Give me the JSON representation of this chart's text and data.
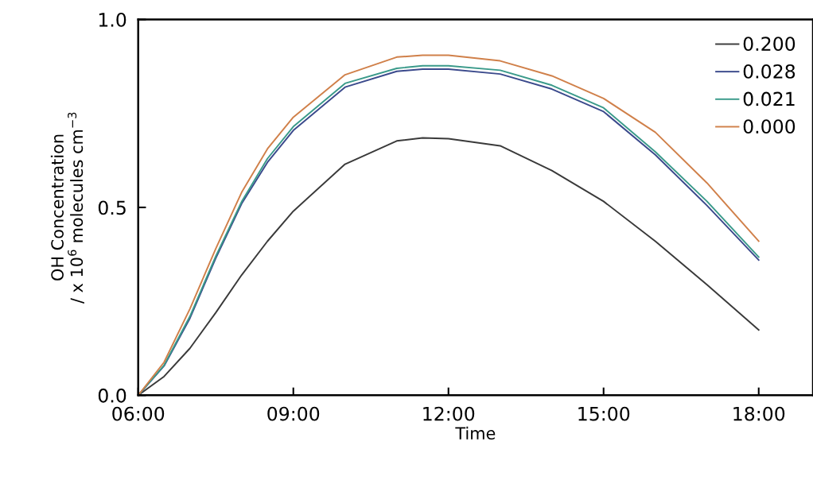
{
  "chart_data": {
    "type": "line",
    "xlabel": "Time",
    "ylabel": "OH Concentration\n/ x 10$^{6}$ molecules cm$^{−3}$",
    "x": [
      6,
      6.5,
      7,
      7.5,
      8,
      8.5,
      9,
      10,
      11,
      11.5,
      12,
      13,
      14,
      15,
      16,
      17,
      18
    ],
    "series": [
      {
        "name": "0.200",
        "color": "#3a3a3a",
        "values": [
          0,
          0.05,
          0.125,
          0.22,
          0.32,
          0.41,
          0.49,
          0.615,
          0.677,
          0.685,
          0.683,
          0.664,
          0.598,
          0.516,
          0.41,
          0.294,
          0.174
        ]
      },
      {
        "name": "0.028",
        "color": "#3b4a8c",
        "values": [
          0,
          0.078,
          0.205,
          0.365,
          0.51,
          0.62,
          0.705,
          0.82,
          0.862,
          0.868,
          0.868,
          0.855,
          0.815,
          0.755,
          0.64,
          0.505,
          0.36
        ]
      },
      {
        "name": "0.021",
        "color": "#3a9a8a",
        "values": [
          0,
          0.08,
          0.21,
          0.37,
          0.515,
          0.63,
          0.715,
          0.83,
          0.87,
          0.877,
          0.877,
          0.865,
          0.825,
          0.765,
          0.648,
          0.516,
          0.368
        ]
      },
      {
        "name": "0.000",
        "color": "#d0804a",
        "values": [
          0,
          0.088,
          0.23,
          0.39,
          0.54,
          0.656,
          0.74,
          0.853,
          0.9,
          0.905,
          0.905,
          0.89,
          0.85,
          0.79,
          0.7,
          0.565,
          0.41
        ]
      }
    ],
    "xlim": [
      6,
      19.05
    ],
    "xticks": [
      {
        "value": 6,
        "label": "06:00"
      },
      {
        "value": 9,
        "label": "09:00"
      },
      {
        "value": 12,
        "label": "12:00"
      },
      {
        "value": 15,
        "label": "15:00"
      },
      {
        "value": 18,
        "label": "18:00"
      }
    ],
    "ylim": [
      0,
      1.0
    ],
    "yticks": [
      {
        "value": 0,
        "label": "0.0"
      },
      {
        "value": 0.5,
        "label": "0.5"
      },
      {
        "value": 1.0,
        "label": "1.0"
      }
    ],
    "legend": "top right",
    "grid": false,
    "marker": "none",
    "line_style": "solid"
  }
}
